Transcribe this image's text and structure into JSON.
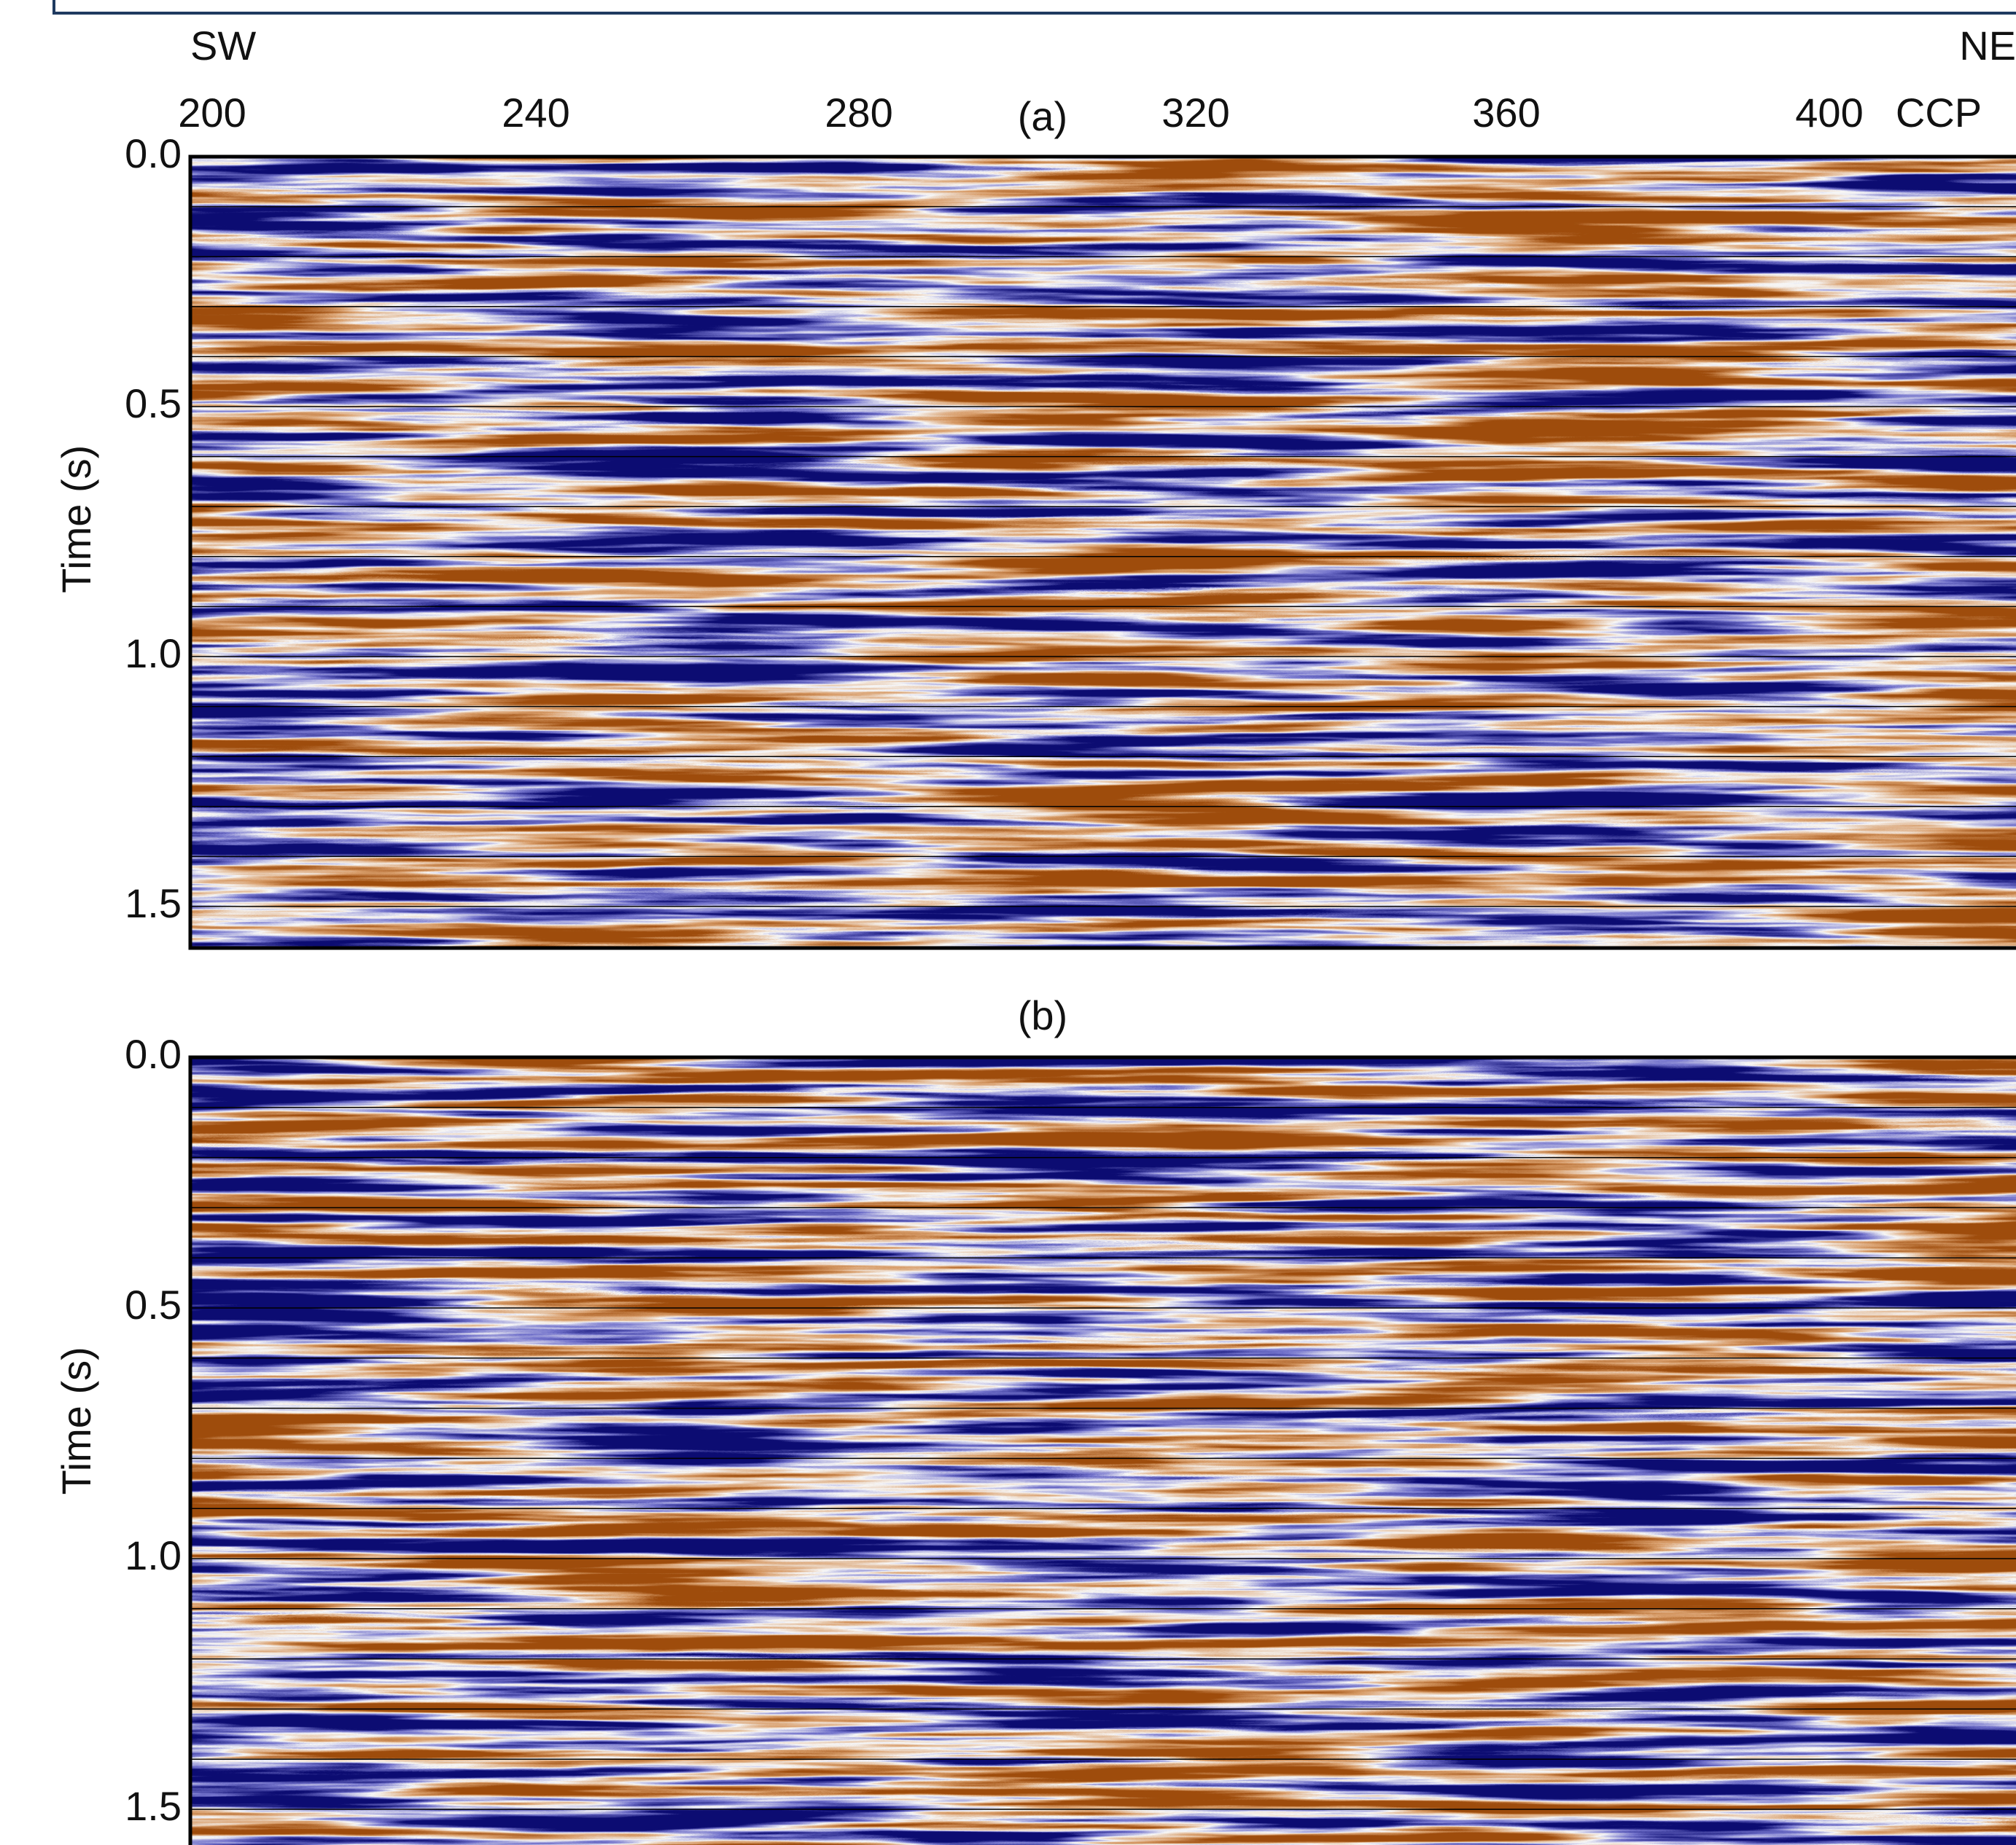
{
  "header": {
    "left": "SW",
    "right": "NE"
  },
  "x_axis": {
    "ticks": [
      "200",
      "240",
      "280",
      "320",
      "360",
      "400"
    ],
    "unit": "CCP"
  },
  "panels": [
    {
      "label": "(a)",
      "y_axis": {
        "title": "Time (s)",
        "ticks": [
          "0.0",
          "0.5",
          "1.0",
          "1.5"
        ]
      }
    },
    {
      "label": "(b)",
      "y_axis": {
        "title": "Time (s)",
        "ticks": [
          "0.0",
          "0.5",
          "1.0",
          "1.5"
        ]
      }
    }
  ]
}
